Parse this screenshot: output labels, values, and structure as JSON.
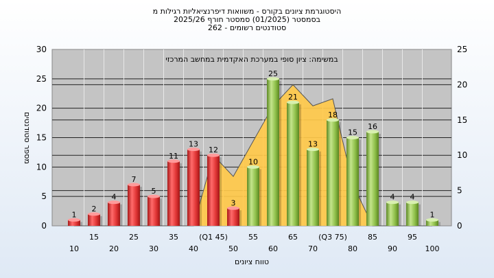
{
  "titles": {
    "line1": "היסטוגרמת ציונים בקורס - משוואות דיפרנציאליות רגילות מ",
    "line2": "בסמסטר  (01/2025)  סמסטר חורף 2025/26",
    "line3": "262 - סטודנטים רשומים"
  },
  "chart_data": {
    "type": "bar",
    "annotation": "במשימה: ציון סופי במערכת האקדמית במחשב המרכזי",
    "xlabel": "טווח ציונים",
    "ylabel": "מספר סטודנטים",
    "ylim_left": [
      0,
      30
    ],
    "ylim_right": [
      0,
      25
    ],
    "yticks_left": [
      0,
      5,
      10,
      15,
      20,
      25,
      30
    ],
    "yticks_right": [
      0,
      5,
      10,
      15,
      20,
      25
    ],
    "grid": true,
    "categories": [
      "10",
      "15",
      "20",
      "25",
      "30",
      "35",
      "40",
      "(Q1 45)",
      "50",
      "55",
      "60",
      "65",
      "70",
      "(Q3 75)",
      "80",
      "85",
      "90",
      "95",
      "100"
    ],
    "values": [
      1,
      2,
      4,
      7,
      5,
      11,
      13,
      12,
      3,
      10,
      25,
      21,
      13,
      18,
      15,
      16,
      4,
      4,
      1
    ],
    "bar_colors": [
      "red",
      "red",
      "red",
      "red",
      "red",
      "red",
      "red",
      "red",
      "red",
      "green",
      "green",
      "green",
      "green",
      "green",
      "green",
      "green",
      "green",
      "green",
      "green"
    ],
    "area_series": {
      "axis": "right",
      "values": [
        0,
        0,
        0,
        0,
        0,
        0,
        0,
        10,
        7,
        12,
        17,
        20,
        17,
        18,
        6,
        0,
        0,
        0,
        0
      ]
    },
    "colors": {
      "red": "#e03535",
      "green": "#8fc04a",
      "area": "#ffc94a",
      "plot_bg": "#c4c4c4"
    }
  }
}
